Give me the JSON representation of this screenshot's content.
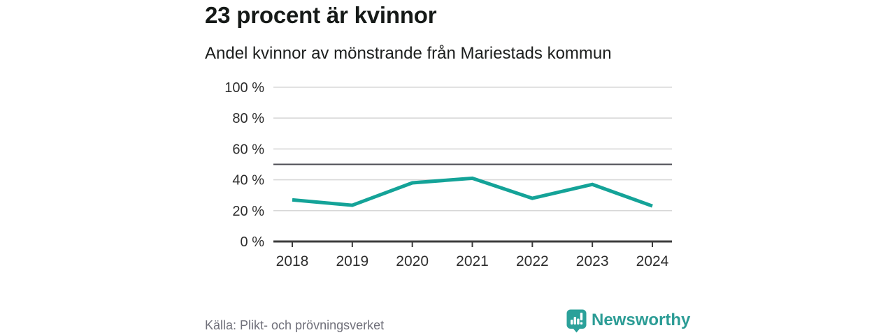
{
  "header": {
    "title": "23 procent är kvinnor",
    "subtitle": "Andel kvinnor av mönstrande från Mariestads kommun"
  },
  "footer": {
    "source": "Källa: Plikt- och prövningsverket",
    "brand": "Newsworthy"
  },
  "colors": {
    "line": "#14a398",
    "grid": "#d8d8d8",
    "reference_line": "#4c4c54",
    "axis": "#3c3c3c",
    "label": "#2e2e2e",
    "brand": "#2b9c95",
    "brand_icon": "#2ba19a"
  },
  "chart_data": {
    "type": "line",
    "x": [
      2018,
      2019,
      2020,
      2021,
      2022,
      2023,
      2024
    ],
    "series": [
      {
        "name": "Andel kvinnor av mönstrande",
        "values": [
          27,
          23.5,
          38,
          41,
          28,
          37,
          23
        ]
      }
    ],
    "title": "23 procent är kvinnor",
    "subtitle": "Andel kvinnor av mönstrande från Mariestads kommun",
    "xlabel": "",
    "ylabel": "",
    "ylim": [
      0,
      100
    ],
    "yticks": [
      0,
      20,
      40,
      60,
      80,
      100
    ],
    "ytick_format": "{v} %",
    "reference_line": 50,
    "grid": true,
    "legend": false
  }
}
